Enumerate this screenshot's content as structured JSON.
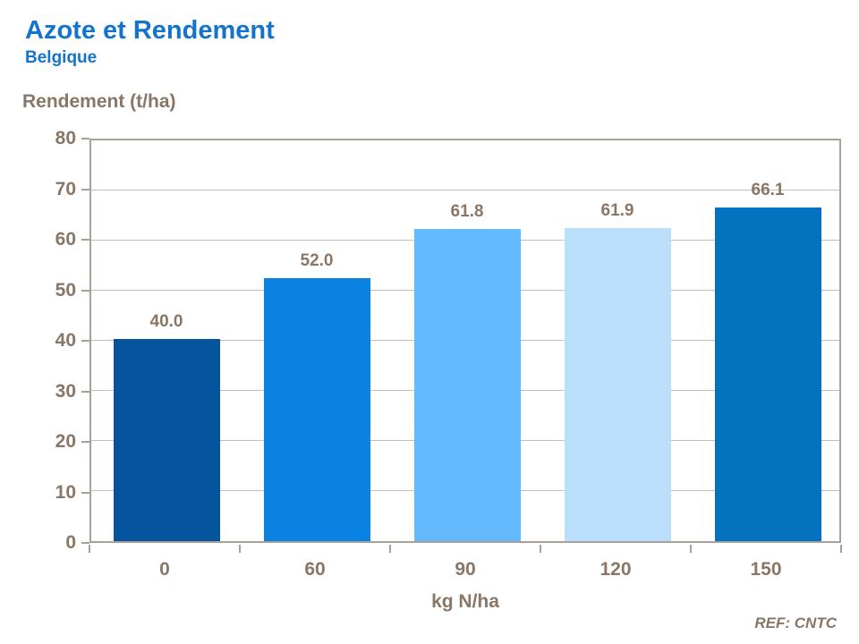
{
  "header": {
    "title": "Azote et Rendement",
    "subtitle": "Belgique"
  },
  "chart_data": {
    "type": "bar",
    "title": "Azote et Rendement",
    "subtitle": "Belgique",
    "ylabel": "Rendement (t/ha)",
    "xlabel": "kg N/ha",
    "categories": [
      "0",
      "60",
      "90",
      "120",
      "150"
    ],
    "values": [
      40.0,
      52.0,
      61.8,
      61.9,
      66.1
    ],
    "value_labels": [
      "40.0",
      "52.0",
      "61.8",
      "61.9",
      "66.1"
    ],
    "ylim": [
      0,
      80
    ],
    "ytick_step": 10,
    "yticks": [
      "0",
      "10",
      "20",
      "30",
      "40",
      "50",
      "60",
      "70",
      "80"
    ],
    "grid": "horizontal",
    "legend": "none",
    "bar_colors": [
      "#05549D",
      "#0982E2",
      "#64BAFC",
      "#B9DFFC",
      "#0572BF"
    ]
  },
  "footer": {
    "ref": "REF: CNTC"
  },
  "colors": {
    "title_blue": "#1474CC",
    "axis_text_brown": "#8A7666",
    "plot_border": "#A9A098",
    "gridline": "#C6BEB6",
    "background": "#FFFFFF"
  }
}
